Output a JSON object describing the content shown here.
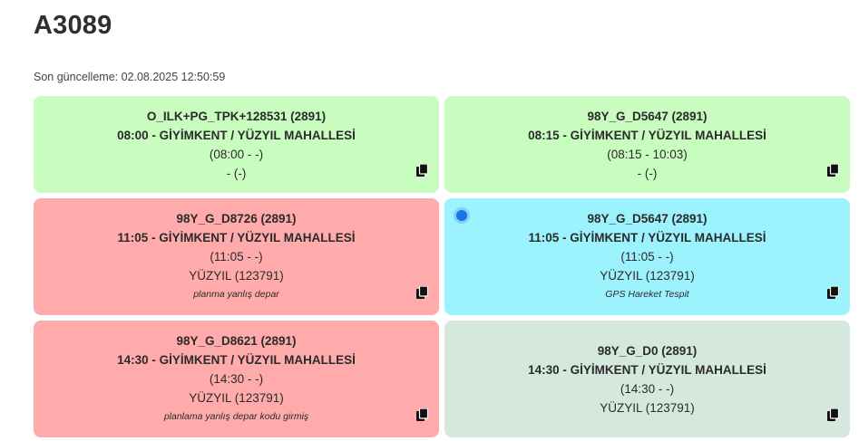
{
  "header": {
    "title": "A3089",
    "last_updated": "Son güncelleme: 02.08.2025 12:50:59"
  },
  "colors": {
    "green": "#c9fcbf",
    "red": "#ffabab",
    "cyan": "#9cf2fd",
    "gray": "#d5e8de",
    "status_dot": "#1a73e8"
  },
  "cards": [
    {
      "code": "O_ILK+PG_TPK+128531 (2891)",
      "route": "08:00 - GİYİMKENT / YÜZYIL MAHALLESİ",
      "times": "(08:00 - -)",
      "vehicle": "- (-)",
      "note": "",
      "icon": "copy-icon"
    },
    {
      "code": "98Y_G_D5647 (2891)",
      "route": "08:15 - GİYİMKENT / YÜZYIL MAHALLESİ",
      "times": "(08:15 - 10:03)",
      "vehicle": "- (-)",
      "note": "",
      "icon": "copy-icon"
    },
    {
      "code": "98Y_G_D8726 (2891)",
      "route": "11:05 - GİYİMKENT / YÜZYIL MAHALLESİ",
      "times": "(11:05 - -)",
      "vehicle": "YÜZYIL (123791)",
      "note": "planma yanlış depar",
      "icon": "copy-icon"
    },
    {
      "code": "98Y_G_D5647 (2891)",
      "route": "11:05 - GİYİMKENT / YÜZYIL MAHALLESİ",
      "times": "(11:05 - -)",
      "vehicle": "YÜZYIL (123791)",
      "note": "GPS Hareket Tespit",
      "icon": "copy-icon"
    },
    {
      "code": "98Y_G_D8621 (2891)",
      "route": "14:30 - GİYİMKENT / YÜZYIL MAHALLESİ",
      "times": "(14:30 - -)",
      "vehicle": "YÜZYIL (123791)",
      "note": "planlama yanlış depar kodu girmiş",
      "icon": "copy-icon"
    },
    {
      "code": "98Y_G_D0 (2891)",
      "route": "14:30 - GİYİMKENT / YÜZYIL MAHALLESİ",
      "times": "(14:30 - -)",
      "vehicle": "YÜZYIL (123791)",
      "note": "",
      "icon": "copy-icon"
    }
  ]
}
